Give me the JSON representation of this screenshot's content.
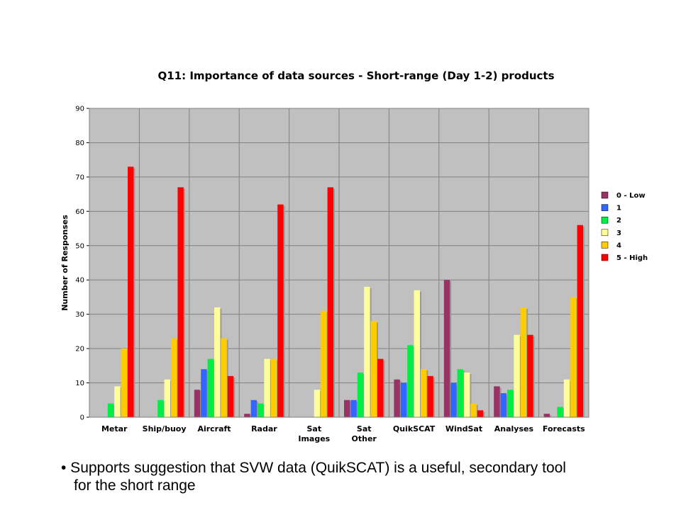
{
  "chart_data": {
    "type": "bar",
    "title": "Q11: Importance of data sources - Short-range (Day 1-2) products",
    "xlabel": "",
    "ylabel": "Number of Responses",
    "ylim": [
      0,
      90
    ],
    "yticks": [
      0,
      10,
      20,
      30,
      40,
      50,
      60,
      70,
      80,
      90
    ],
    "grid": true,
    "legend_position": "right",
    "categories": [
      [
        "Metar"
      ],
      [
        "Ship/buoy"
      ],
      [
        "Aircraft"
      ],
      [
        "Radar"
      ],
      [
        "Sat",
        "Images"
      ],
      [
        "Sat",
        "Other"
      ],
      [
        "QuikSCAT"
      ],
      [
        "WindSat"
      ],
      [
        "Analyses"
      ],
      [
        "Forecasts"
      ]
    ],
    "series": [
      {
        "name": "0 - Low",
        "color": "#993366",
        "values": [
          0,
          0,
          8,
          1,
          0,
          5,
          11,
          40,
          9,
          1
        ]
      },
      {
        "name": "1",
        "color": "#3366ff",
        "values": [
          0,
          0,
          14,
          5,
          0,
          5,
          10,
          10,
          7,
          0
        ]
      },
      {
        "name": "2",
        "color": "#00ee44",
        "values": [
          4,
          5,
          17,
          4,
          0,
          13,
          21,
          14,
          8,
          3
        ]
      },
      {
        "name": "3",
        "color": "#ffff99",
        "values": [
          9,
          11,
          32,
          17,
          8,
          38,
          37,
          13,
          24,
          11
        ]
      },
      {
        "name": "4",
        "color": "#ffcc00",
        "values": [
          20,
          23,
          23,
          17,
          31,
          28,
          14,
          4,
          32,
          35
        ]
      },
      {
        "name": "5 - High",
        "color": "#ff0000",
        "values": [
          73,
          67,
          12,
          62,
          67,
          17,
          12,
          2,
          24,
          56
        ]
      }
    ]
  },
  "note": {
    "line1": "• Supports suggestion that SVW data (QuikSCAT) is a useful, secondary tool",
    "line2": "for the short range"
  }
}
